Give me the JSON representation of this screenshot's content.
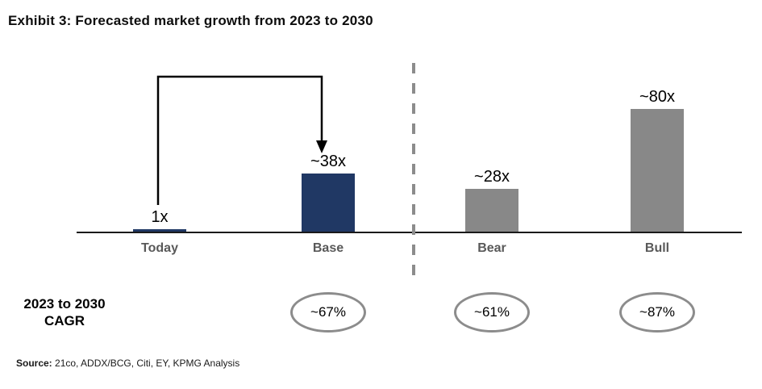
{
  "title": "Exhibit 3: Forecasted market growth from 2023 to 2030",
  "chart_data": {
    "type": "bar",
    "title": "Exhibit 3: Forecasted market growth from 2023 to 2030",
    "categories": [
      "Today",
      "Base",
      "Bear",
      "Bull"
    ],
    "values": [
      1,
      38,
      28,
      80
    ],
    "value_labels": [
      "1x",
      "~38x",
      "~28x",
      "~80x"
    ],
    "bar_colors": [
      "#203864",
      "#203864",
      "#888888",
      "#888888"
    ],
    "ylim": [
      0,
      85
    ],
    "grid": false,
    "y_axis_shown": false,
    "separator_after_category": "Base",
    "arrow_annotation": {
      "from": "Today",
      "to": "Base"
    },
    "cagr_row": {
      "label_line1": "2023 to 2030",
      "label_line2": "CAGR",
      "items": [
        {
          "category": "Base",
          "value": "~67%"
        },
        {
          "category": "Bear",
          "value": "~61%"
        },
        {
          "category": "Bull",
          "value": "~87%"
        }
      ]
    }
  },
  "source": {
    "label": "Source:",
    "text": " 21co, ADDX/BCG, Citi, EY, KPMG Analysis"
  },
  "colors": {
    "navy_bar": "#203864",
    "gray_bar": "#888888",
    "separator_line": "#8C8C8C",
    "ellipse_stroke": "#8C8C8C",
    "category_label": "#595959",
    "baseline": "#1a1a1a",
    "arrow": "#000000"
  }
}
